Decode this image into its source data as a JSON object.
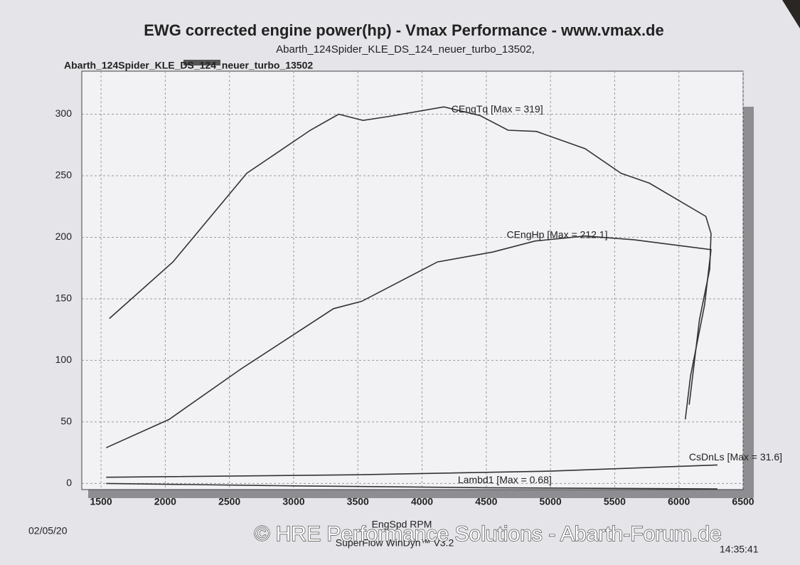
{
  "chart_data": {
    "type": "line",
    "title": "EWG corrected engine power(hp) - Vmax Performance - www.vmax.de",
    "subtitle": "Abarth_124Spider_KLE_DS_124_neuer_turbo_13502,",
    "run_label": "Abarth_124Spider_KLE_DS_124_neuer_turbo_13502",
    "x_label": "EngSpd RPM",
    "software": "SuperFlow WinDyn™ V3.2",
    "date": "02/05/20",
    "time": "14:35:41",
    "watermark": "© HRE Performance Solutions - Abarth-Forum.de",
    "xlim": [
      1350,
      6500
    ],
    "ylim": [
      -5,
      335
    ],
    "xticks": [
      1500,
      2000,
      2500,
      3000,
      3500,
      4000,
      4500,
      5000,
      5500,
      6000,
      6500
    ],
    "yticks": [
      0,
      50,
      100,
      150,
      200,
      250,
      300
    ],
    "grid": true,
    "series": [
      {
        "name": "CEngTq [Max = 319]",
        "color": "#333333",
        "x": [
          1565,
          2060,
          2635,
          3130,
          3350,
          3540,
          3730,
          4170,
          4450,
          4670,
          4890,
          5270,
          5550,
          5770,
          6210,
          6250,
          6240,
          6160,
          6080
        ],
        "values": [
          134,
          180,
          252,
          287,
          300,
          295,
          298,
          306,
          299,
          287,
          286,
          272,
          252,
          244,
          217,
          203,
          174,
          133,
          64
        ]
      },
      {
        "name": "CEngHp [Max = 212.1]",
        "color": "#333333",
        "x": [
          1540,
          2030,
          2590,
          3310,
          3530,
          4120,
          4550,
          4880,
          5270,
          5650,
          6250,
          6200,
          6090,
          6050
        ],
        "values": [
          29,
          52,
          93,
          142,
          148,
          180,
          188,
          197,
          201,
          198,
          190,
          145,
          87,
          52
        ]
      },
      {
        "name": "CsDnLs [Max = 31.6]",
        "color": "#333333",
        "x": [
          1540,
          3500,
          5000,
          6300
        ],
        "values": [
          5,
          7,
          10,
          15
        ]
      },
      {
        "name": "Lambd1 [Max = 0.68]",
        "color": "#333333",
        "x": [
          1540,
          3000,
          4500,
          6300
        ],
        "values": [
          0,
          -2,
          -3.5,
          -4.5
        ]
      }
    ]
  }
}
